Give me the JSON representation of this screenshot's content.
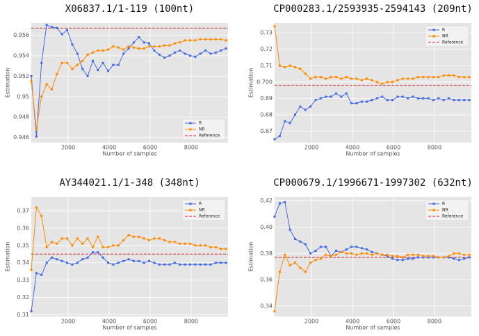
{
  "chart_data": [
    {
      "type": "line",
      "title": "X06837.1/1-119 (100nt)",
      "xlabel": "Number of samples",
      "ylabel": "Estimation",
      "x": [
        200,
        450,
        700,
        950,
        1200,
        1450,
        1700,
        1950,
        2200,
        2450,
        2700,
        2950,
        3200,
        3450,
        3700,
        3950,
        4200,
        4450,
        4700,
        4950,
        5200,
        5450,
        5700,
        5950,
        6200,
        6450,
        6700,
        6950,
        7200,
        7450,
        7700,
        7950,
        8200,
        8450,
        8700,
        8950,
        9200,
        9450,
        9700
      ],
      "xlim": [
        200,
        9800
      ],
      "xticks": [
        2000,
        4000,
        6000,
        8000
      ],
      "ylim": [
        0.9455,
        0.9572
      ],
      "yticks": [
        0.946,
        0.948,
        0.95,
        0.952,
        0.954,
        0.956
      ],
      "grid": true,
      "legend": "lower right",
      "series": [
        {
          "name": "R",
          "color": "#4169e1",
          "marker": "square",
          "values": [
            0.952,
            0.9461,
            0.9533,
            0.957,
            0.9568,
            0.9567,
            0.9561,
            0.9565,
            0.9551,
            0.9542,
            0.9527,
            0.952,
            0.9535,
            0.9526,
            0.9533,
            0.9525,
            0.9531,
            0.9531,
            0.9542,
            0.9547,
            0.9553,
            0.9558,
            0.9553,
            0.9552,
            0.9545,
            0.9541,
            0.9538,
            0.954,
            0.9543,
            0.9545,
            0.9542,
            0.954,
            0.9539,
            0.9542,
            0.9545,
            0.9542,
            0.9543,
            0.9545,
            0.9547
          ]
        },
        {
          "name": "NR",
          "color": "#ff8c00",
          "marker": "circle",
          "values": [
            0.9515,
            0.9468,
            0.95,
            0.9512,
            0.9507,
            0.9522,
            0.9533,
            0.9533,
            0.9527,
            0.9531,
            0.9535,
            0.9541,
            0.9543,
            0.9545,
            0.9545,
            0.9546,
            0.9549,
            0.9548,
            0.9546,
            0.9549,
            0.9548,
            0.9547,
            0.9547,
            0.9549,
            0.9549,
            0.9549,
            0.955,
            0.955,
            0.9552,
            0.9553,
            0.9555,
            0.9555,
            0.9555,
            0.9556,
            0.9556,
            0.9556,
            0.9556,
            0.9556,
            0.9555
          ]
        }
      ],
      "reference": {
        "name": "Reference",
        "color": "#e41a1c",
        "value": 0.9567
      }
    },
    {
      "type": "line",
      "title": "CP000283.1/2593935-2594143 (209nt)",
      "xlabel": "Number of samples",
      "ylabel": "Estimation",
      "x": [
        200,
        450,
        700,
        950,
        1200,
        1450,
        1700,
        1950,
        2200,
        2450,
        2700,
        2950,
        3200,
        3450,
        3700,
        3950,
        4200,
        4450,
        4700,
        4950,
        5200,
        5450,
        5700,
        5950,
        6200,
        6450,
        6700,
        6950,
        7200,
        7450,
        7700,
        7950,
        8200,
        8450,
        8700,
        8950,
        9200,
        9450,
        9700
      ],
      "xlim": [
        200,
        9800
      ],
      "xticks": [
        2000,
        4000,
        6000,
        8000
      ],
      "ylim": [
        0.663,
        0.736
      ],
      "yticks": [
        0.67,
        0.68,
        0.69,
        {
          "value": 0.7,
          "label": "0.700"
        },
        0.71,
        0.72,
        0.73
      ],
      "grid": true,
      "legend": "upper right",
      "series": [
        {
          "name": "R",
          "color": "#4169e1",
          "marker": "square",
          "values": [
            0.665,
            0.667,
            0.676,
            0.675,
            0.68,
            0.685,
            0.683,
            0.685,
            0.689,
            0.69,
            0.691,
            0.691,
            0.693,
            0.691,
            0.693,
            0.687,
            0.687,
            0.688,
            0.688,
            0.689,
            0.69,
            0.691,
            0.689,
            0.689,
            0.691,
            0.691,
            0.69,
            0.691,
            0.69,
            0.69,
            0.69,
            0.689,
            0.69,
            0.689,
            0.69,
            0.689,
            0.689,
            0.689,
            0.689
          ]
        },
        {
          "name": "NR",
          "color": "#ff8c00",
          "marker": "circle",
          "values": [
            0.734,
            0.71,
            0.709,
            0.71,
            0.709,
            0.708,
            0.705,
            0.702,
            0.703,
            0.703,
            0.702,
            0.703,
            0.703,
            0.702,
            0.703,
            0.702,
            0.702,
            0.701,
            0.702,
            0.701,
            0.7,
            0.699,
            0.7,
            0.7,
            0.701,
            0.702,
            0.702,
            0.702,
            0.703,
            0.703,
            0.703,
            0.703,
            0.703,
            0.704,
            0.704,
            0.704,
            0.703,
            0.703,
            0.703
          ]
        }
      ],
      "reference": {
        "name": "Reference",
        "color": "#e41a1c",
        "value": 0.698
      }
    },
    {
      "type": "line",
      "title": "AY344021.1/1-348 (348nt)",
      "xlabel": "Number of samples",
      "ylabel": "Estimation",
      "x": [
        200,
        450,
        700,
        950,
        1200,
        1450,
        1700,
        1950,
        2200,
        2450,
        2700,
        2950,
        3200,
        3450,
        3700,
        3950,
        4200,
        4450,
        4700,
        4950,
        5200,
        5450,
        5700,
        5950,
        6200,
        6450,
        6700,
        6950,
        7200,
        7450,
        7700,
        7950,
        8200,
        8450,
        8700,
        8950,
        9200,
        9450,
        9700
      ],
      "xlim": [
        200,
        9800
      ],
      "xticks": [
        2000,
        4000,
        6000,
        8000
      ],
      "ylim": [
        0.309,
        0.378
      ],
      "yticks": [
        0.31,
        0.32,
        0.33,
        0.34,
        0.35,
        0.36,
        0.37
      ],
      "grid": true,
      "legend": "upper right",
      "series": [
        {
          "name": "R",
          "color": "#4169e1",
          "marker": "square",
          "values": [
            0.312,
            0.334,
            0.333,
            0.34,
            0.343,
            0.342,
            0.341,
            0.34,
            0.339,
            0.34,
            0.342,
            0.343,
            0.346,
            0.346,
            0.343,
            0.34,
            0.339,
            0.34,
            0.341,
            0.342,
            0.341,
            0.341,
            0.34,
            0.341,
            0.34,
            0.339,
            0.339,
            0.339,
            0.34,
            0.339,
            0.339,
            0.339,
            0.339,
            0.339,
            0.339,
            0.339,
            0.34,
            0.34,
            0.34
          ]
        },
        {
          "name": "NR",
          "color": "#ff8c00",
          "marker": "circle",
          "values": [
            0.336,
            0.372,
            0.367,
            0.349,
            0.352,
            0.351,
            0.354,
            0.354,
            0.35,
            0.354,
            0.351,
            0.354,
            0.349,
            0.355,
            0.349,
            0.349,
            0.35,
            0.35,
            0.353,
            0.356,
            0.355,
            0.355,
            0.354,
            0.353,
            0.354,
            0.354,
            0.353,
            0.352,
            0.352,
            0.351,
            0.351,
            0.351,
            0.35,
            0.35,
            0.35,
            0.349,
            0.349,
            0.348,
            0.348
          ]
        }
      ],
      "reference": {
        "name": "Reference",
        "color": "#e41a1c",
        "value": 0.345
      }
    },
    {
      "type": "line",
      "title": "CP000679.1/1996671-1997302 (632nt)",
      "xlabel": "Number of samples",
      "ylabel": "Estimation",
      "x": [
        200,
        450,
        700,
        950,
        1200,
        1450,
        1700,
        1950,
        2200,
        2450,
        2700,
        2950,
        3200,
        3450,
        3700,
        3950,
        4200,
        4450,
        4700,
        4950,
        5200,
        5450,
        5700,
        5950,
        6200,
        6450,
        6700,
        6950,
        7200,
        7450,
        7700,
        7950,
        8200,
        8450,
        8700,
        8950,
        9200,
        9450,
        9700
      ],
      "xlim": [
        200,
        9800
      ],
      "xticks": [
        2000,
        4000,
        6000,
        8000
      ],
      "ylim": [
        0.332,
        0.423
      ],
      "yticks": [
        0.34,
        0.36,
        0.38,
        {
          "value": 0.4,
          "label": "0.40"
        },
        0.42
      ],
      "grid": true,
      "legend": "upper right",
      "series": [
        {
          "name": "R",
          "color": "#4169e1",
          "marker": "square",
          "values": [
            0.408,
            0.418,
            0.419,
            0.398,
            0.391,
            0.389,
            0.387,
            0.38,
            0.382,
            0.385,
            0.385,
            0.378,
            0.382,
            0.381,
            0.383,
            0.385,
            0.385,
            0.384,
            0.383,
            0.381,
            0.38,
            0.379,
            0.378,
            0.376,
            0.375,
            0.375,
            0.376,
            0.376,
            0.377,
            0.377,
            0.377,
            0.377,
            0.377,
            0.377,
            0.377,
            0.376,
            0.375,
            0.376,
            0.377
          ]
        },
        {
          "name": "NR",
          "color": "#ff8c00",
          "marker": "circle",
          "values": [
            0.336,
            0.366,
            0.379,
            0.371,
            0.373,
            0.369,
            0.366,
            0.373,
            0.375,
            0.376,
            0.379,
            0.378,
            0.379,
            0.381,
            0.38,
            0.38,
            0.379,
            0.38,
            0.38,
            0.379,
            0.38,
            0.379,
            0.379,
            0.378,
            0.378,
            0.377,
            0.379,
            0.379,
            0.379,
            0.378,
            0.378,
            0.378,
            0.377,
            0.377,
            0.378,
            0.38,
            0.38,
            0.379,
            0.379
          ]
        }
      ],
      "reference": {
        "name": "Reference",
        "color": "#e41a1c",
        "value": 0.377
      }
    }
  ]
}
